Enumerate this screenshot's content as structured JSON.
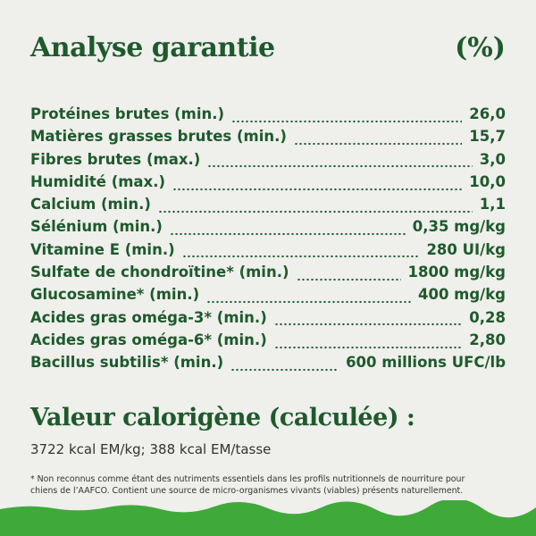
{
  "header": {
    "title": "Analyse garantie",
    "unit": "(%)"
  },
  "rows": [
    [
      "Protéines brutes (min.)",
      "26,0"
    ],
    [
      "Matières grasses brutes (min.)",
      "15,7"
    ],
    [
      "Fibres brutes (max.)",
      "3,0"
    ],
    [
      "Humidité (max.)",
      "10,0"
    ],
    [
      "Calcium (min.)",
      "1,1"
    ],
    [
      "Sélénium (min.)",
      "0,35 mg/kg"
    ],
    [
      "Vitamine E (min.)",
      "280 UI/kg"
    ],
    [
      "Sulfate de chondroïtine* (min.)",
      "1800 mg/kg"
    ],
    [
      "Glucosamine* (min.)",
      "400 mg/kg"
    ],
    [
      "Acides gras oméga-3* (min.)",
      "0,28"
    ],
    [
      "Acides gras oméga-6* (min.)",
      "2,80"
    ],
    [
      "Bacillus subtilis* (min.)",
      "600 millions UFC/lb"
    ]
  ],
  "calories": {
    "title": "Valeur calorigène (calculée) :",
    "value": "3722 kcal EM/kg; 388 kcal EM/tasse"
  },
  "footnote": [
    "* Non reconnus comme étant des nutriments essentiels dans les profils nutritionnels de nourriture pour",
    "chiens de l’AAFCO. Contient une source de micro-organismes vivants (viables) présents naturellement."
  ]
}
